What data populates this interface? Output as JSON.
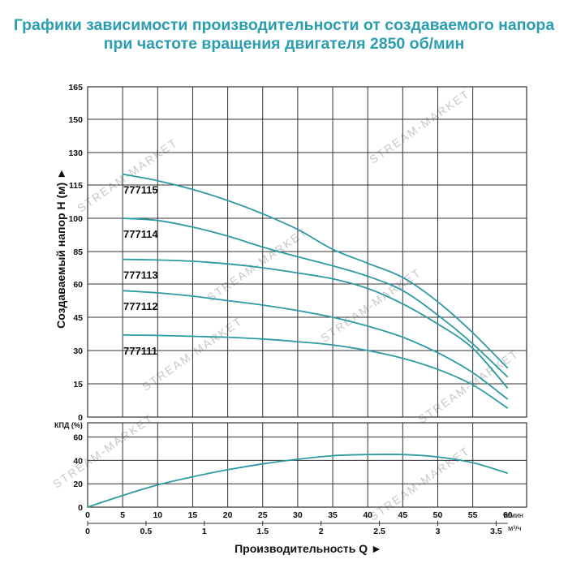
{
  "page": {
    "title_line1": "Графики зависимости производительности от создаваемого напора",
    "title_line2": "при частоте вращения двигателя 2850 об/мин",
    "watermark": "STREAM-MARKET"
  },
  "colors": {
    "title": "#2a9db0",
    "curve": "#2e9aa3",
    "grid": "#333333"
  },
  "chart_data": [
    {
      "type": "line",
      "ylabel": "Создаваемый напор H (м) ►",
      "yticks": [
        0,
        15,
        30,
        45,
        60,
        85,
        100,
        115,
        130,
        150,
        165
      ],
      "x_lpm_ticks": [
        0,
        5,
        10,
        15,
        20,
        25,
        30,
        35,
        40,
        45,
        50,
        55,
        60
      ],
      "x_lpm_unit": "л/мин",
      "ylim": [
        0,
        165
      ],
      "xlim": [
        0,
        60
      ],
      "grid": true,
      "series": [
        {
          "name": "777115",
          "x": [
            5,
            10,
            15,
            20,
            25,
            30,
            35,
            40,
            45,
            50,
            55,
            60
          ],
          "y": [
            120,
            117,
            113,
            108,
            102,
            95,
            86,
            76,
            65,
            52,
            38,
            22
          ]
        },
        {
          "name": "777114",
          "x": [
            5,
            10,
            15,
            20,
            25,
            30,
            35,
            40,
            45,
            50,
            55,
            60
          ],
          "y": [
            100,
            99,
            96,
            92,
            87,
            81,
            74,
            66,
            57,
            46,
            33,
            18
          ]
        },
        {
          "name": "777113",
          "x": [
            5,
            10,
            15,
            20,
            25,
            30,
            35,
            40,
            45,
            50,
            55,
            60
          ],
          "y": [
            79,
            78.5,
            77.5,
            75.5,
            72.5,
            68.5,
            64,
            58,
            51,
            42,
            31,
            13
          ]
        },
        {
          "name": "777112",
          "x": [
            5,
            10,
            15,
            20,
            25,
            30,
            35,
            40,
            45,
            50,
            55,
            60
          ],
          "y": [
            57,
            56,
            54.5,
            52.5,
            50.5,
            48,
            45,
            41,
            36,
            29,
            20,
            8
          ]
        },
        {
          "name": "777111",
          "x": [
            5,
            10,
            15,
            20,
            25,
            30,
            35,
            40,
            45,
            50,
            55,
            60
          ],
          "y": [
            37,
            36.8,
            36.4,
            36,
            35.2,
            34,
            32.5,
            30,
            26.5,
            21.5,
            14.5,
            4
          ]
        }
      ]
    },
    {
      "type": "line",
      "ylabel": "КПД (%)",
      "yticks": [
        0,
        20,
        40,
        60
      ],
      "ylim": [
        0,
        60
      ],
      "xlim": [
        0,
        60
      ],
      "grid": true,
      "series": [
        {
          "x": [
            0,
            5,
            10,
            15,
            20,
            25,
            30,
            35,
            40,
            45,
            50,
            55,
            60
          ],
          "y": [
            0,
            10,
            19,
            26,
            32,
            37,
            41,
            44,
            45,
            45,
            43,
            38,
            29
          ]
        }
      ],
      "x_m3h_ticks": [
        "0",
        "0.5",
        "1",
        "1.5",
        "2",
        "2.5",
        "3",
        "3.5"
      ],
      "x_m3h_unit": "м³/ч",
      "xlabel": "Производительность Q ►"
    }
  ]
}
